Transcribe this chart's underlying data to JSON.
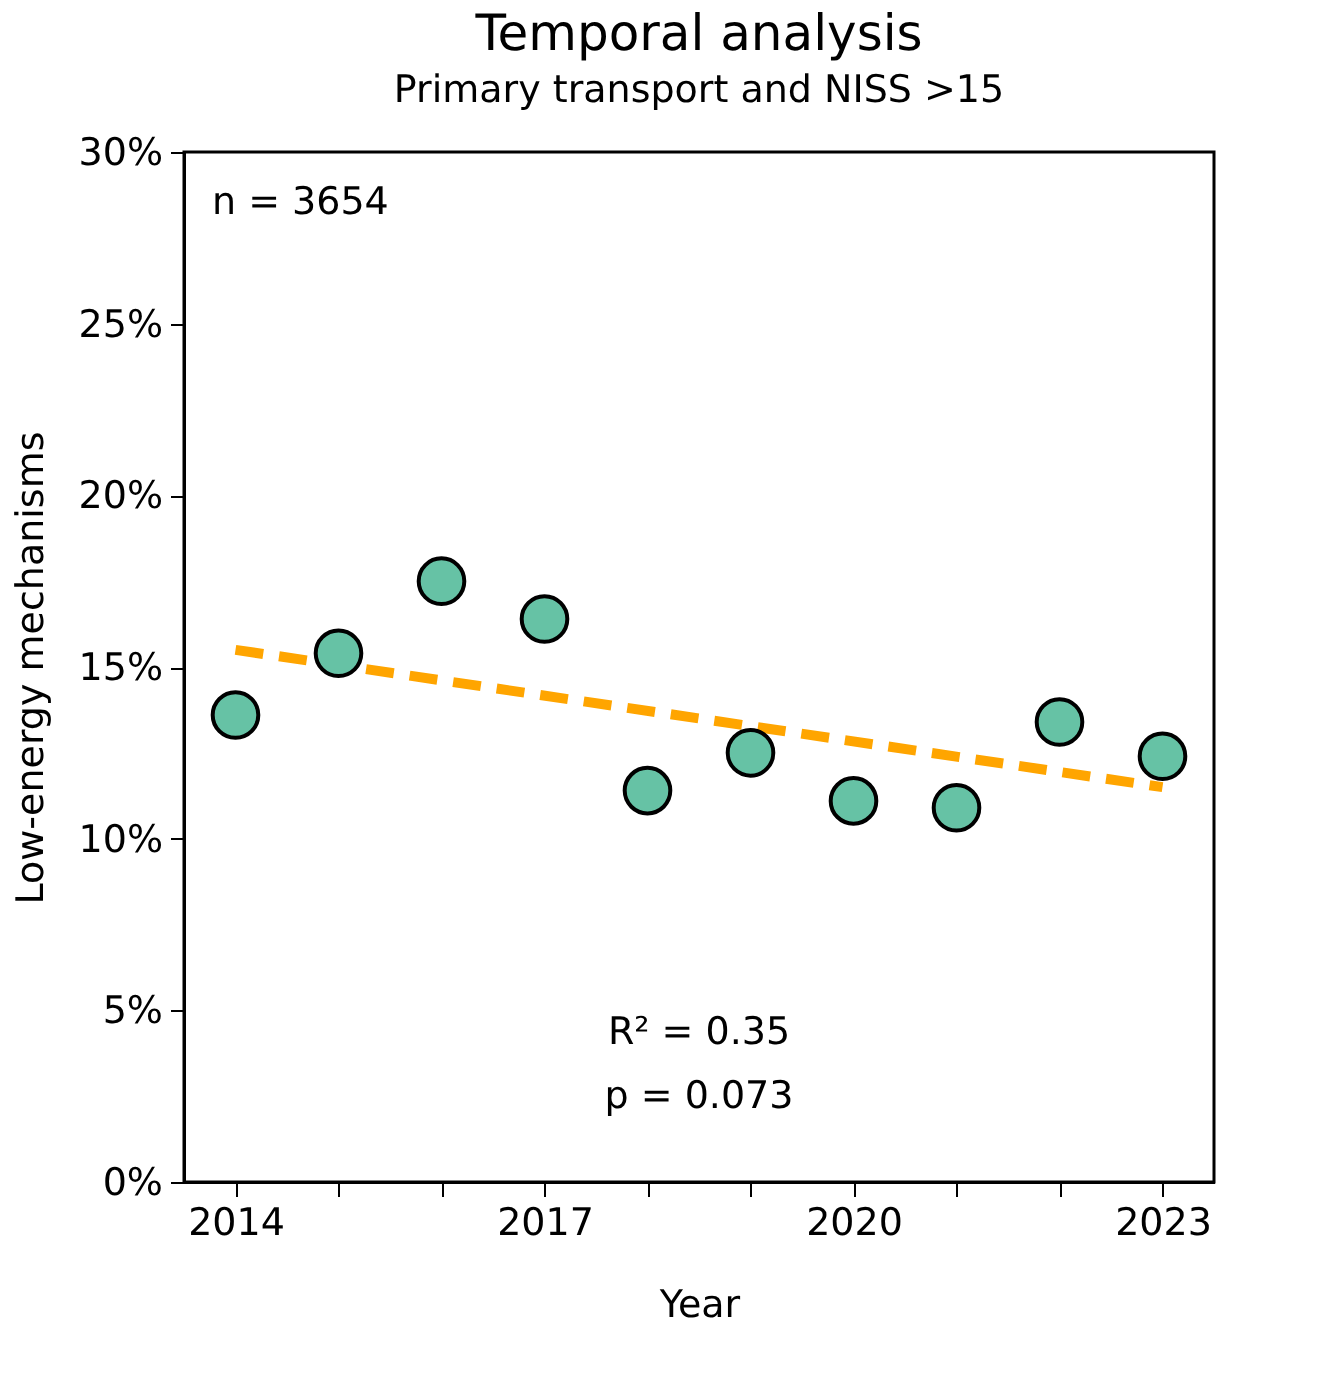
{
  "chart_data": {
    "type": "scatter",
    "title": "Temporal analysis",
    "subtitle": "Primary transport and NISS >15",
    "xlabel": "Year",
    "ylabel": "Low-energy mechanisms",
    "x": [
      2014,
      2015,
      2016,
      2017,
      2018,
      2019,
      2020,
      2021,
      2022,
      2023
    ],
    "marker": "circle",
    "series": [
      {
        "color": "#66c2a5",
        "values": [
          13.6,
          15.4,
          17.5,
          16.4,
          11.4,
          12.5,
          11.1,
          10.9,
          13.4,
          12.4
        ]
      },
      {
        "type": "line",
        "color": "#ffa500",
        "line_style": "dashed",
        "marker": "none",
        "x": [
          2014,
          2023
        ],
        "values": [
          15.5,
          11.5
        ]
      }
    ],
    "xlim": [
      2013.5,
      2023.5
    ],
    "xticks": [
      2014,
      {
        "value": 2015,
        "label": null
      },
      {
        "value": 2016,
        "label": null
      },
      2017,
      {
        "value": 2018,
        "label": null
      },
      {
        "value": 2019,
        "label": null
      },
      2020,
      {
        "value": 2021,
        "label": null
      },
      {
        "value": 2022,
        "label": null
      },
      2023
    ],
    "ylim": [
      0,
      30
    ],
    "yticks": [
      {
        "value": 0,
        "label": "0%"
      },
      {
        "value": 5,
        "label": "5%"
      },
      {
        "value": 10,
        "label": "10%"
      },
      {
        "value": 15,
        "label": "15%"
      },
      {
        "value": 20,
        "label": "20%"
      },
      {
        "value": 25,
        "label": "25%"
      },
      {
        "value": 30,
        "label": "30%"
      }
    ],
    "annotations": [
      "n = 3654",
      "R² = 0.35",
      "p = 0.073"
    ]
  }
}
